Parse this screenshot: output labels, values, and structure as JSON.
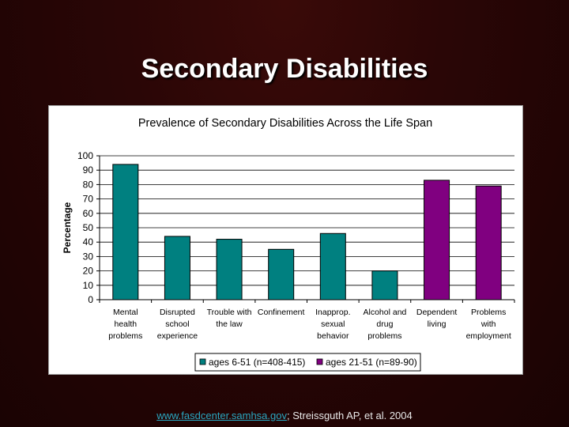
{
  "slide": {
    "title": "Secondary Disabilities",
    "footer_link": "www.fasdcenter.samhsa.gov",
    "footer_text": "; Streissguth AP, et al. 2004"
  },
  "chart_data": {
    "type": "bar",
    "title": "Prevalence of Secondary Disabilities Across the Life Span",
    "ylabel": "Percentage",
    "xlabel": "",
    "ylim": [
      0,
      100
    ],
    "yticks": [
      0,
      10,
      20,
      30,
      40,
      50,
      60,
      70,
      80,
      90,
      100
    ],
    "grid": true,
    "legend_position": "bottom",
    "categories": [
      [
        "Mental",
        "health",
        "problems"
      ],
      [
        "Disrupted",
        "school",
        "experience"
      ],
      [
        "Trouble with",
        "the law"
      ],
      [
        "Confinement"
      ],
      [
        "Inapprop.",
        "sexual",
        "behavior"
      ],
      [
        "Alcohol and",
        "drug",
        "problems"
      ],
      [
        "Dependent",
        "living"
      ],
      [
        "Problems",
        "with",
        "employment"
      ]
    ],
    "series": [
      {
        "name": "ages 6-51 (n=408-415)",
        "color": "#008080",
        "values": [
          94,
          44,
          42,
          35,
          46,
          20,
          null,
          null
        ]
      },
      {
        "name": "ages 21-51 (n=89-90)",
        "color": "#800080",
        "values": [
          null,
          null,
          null,
          null,
          null,
          null,
          83,
          79
        ]
      }
    ]
  }
}
